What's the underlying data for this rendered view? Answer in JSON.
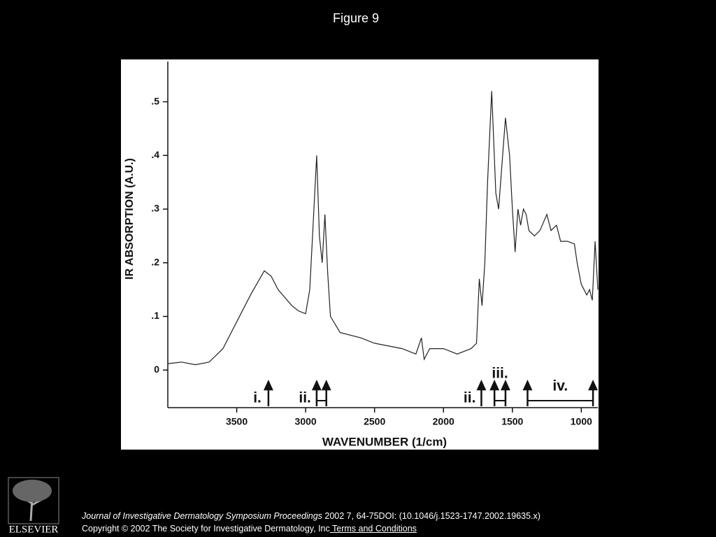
{
  "page_title": "Figure 9",
  "chart_data": {
    "type": "line",
    "xlabel": "WAVENUMBER (1/cm)",
    "ylabel": "IR ABSORPTION (A.U.)",
    "xlim": [
      4000,
      880
    ],
    "ylim": [
      -0.07,
      0.575
    ],
    "xticks": [
      3500,
      3000,
      2500,
      2000,
      1500,
      1000
    ],
    "yticks": [
      0,
      {
        "value": 0.1,
        "label": ".1"
      },
      {
        "value": 0.2,
        "label": ".2"
      },
      {
        "value": 0.3,
        "label": ".3"
      },
      {
        "value": 0.4,
        "label": ".4"
      },
      {
        "value": 0.5,
        "label": ".5"
      }
    ],
    "color": "#222222",
    "x": [
      4000,
      3900,
      3800,
      3700,
      3600,
      3500,
      3400,
      3300,
      3250,
      3200,
      3100,
      3050,
      3000,
      2970,
      2950,
      2920,
      2900,
      2880,
      2860,
      2840,
      2820,
      2750,
      2600,
      2500,
      2300,
      2200,
      2160,
      2140,
      2100,
      2000,
      1900,
      1800,
      1760,
      1740,
      1720,
      1700,
      1680,
      1650,
      1620,
      1600,
      1550,
      1520,
      1500,
      1480,
      1460,
      1440,
      1420,
      1400,
      1380,
      1340,
      1300,
      1250,
      1220,
      1180,
      1150,
      1100,
      1050,
      1030,
      1000,
      960,
      940,
      920,
      900,
      880
    ],
    "values": [
      0.012,
      0.015,
      0.01,
      0.015,
      0.04,
      0.09,
      0.14,
      0.185,
      0.175,
      0.15,
      0.12,
      0.11,
      0.105,
      0.15,
      0.25,
      0.4,
      0.25,
      0.2,
      0.29,
      0.18,
      0.1,
      0.07,
      0.06,
      0.05,
      0.04,
      0.03,
      0.06,
      0.02,
      0.04,
      0.04,
      0.03,
      0.04,
      0.05,
      0.17,
      0.12,
      0.2,
      0.35,
      0.52,
      0.33,
      0.3,
      0.47,
      0.4,
      0.3,
      0.22,
      0.3,
      0.27,
      0.3,
      0.29,
      0.26,
      0.25,
      0.26,
      0.29,
      0.26,
      0.27,
      0.24,
      0.24,
      0.235,
      0.2,
      0.16,
      0.14,
      0.15,
      0.13,
      0.24,
      0.15
    ],
    "annotations": [
      {
        "label": "i.",
        "x": [
          3270
        ]
      },
      {
        "label": "ii.",
        "x": [
          2920,
          2850
        ]
      },
      {
        "label": "ii.",
        "x": [
          1725
        ]
      },
      {
        "label": "iii.",
        "x": [
          1630,
          1550
        ]
      },
      {
        "label": "iv.",
        "x": [
          1390,
          915
        ]
      }
    ]
  },
  "footer": {
    "journal": "Journal of Investigative Dermatology Symposium Proceedings",
    "citation": " 2002 7, 64-75DOI: (10.1046/j.1523-1747.2002.19635.x)",
    "copyright": "Copyright © 2002 The Society for Investigative Dermatology, Inc",
    "link": " Terms and Conditions",
    "publisher": "ELSEVIER"
  }
}
